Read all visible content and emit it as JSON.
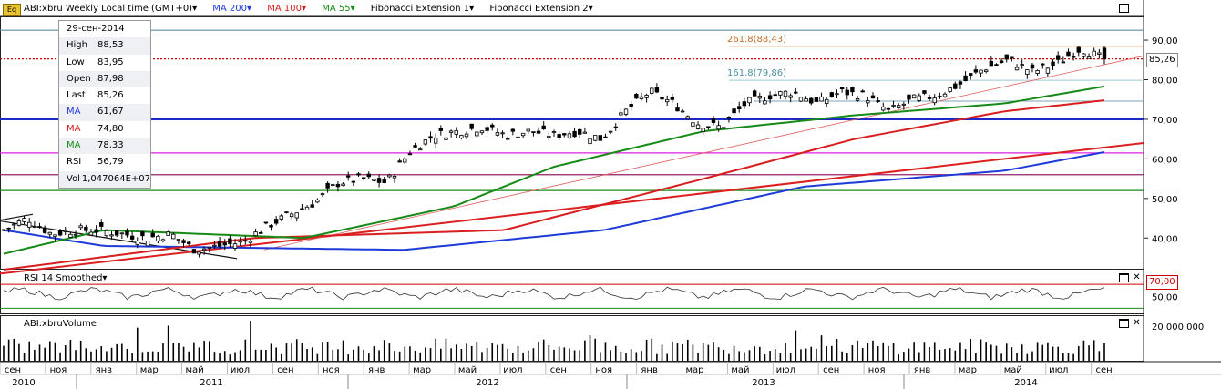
{
  "header": {
    "logo": "Eq",
    "symbol_label": "ABI:xbru Weekly Local time (GMT+0)▾",
    "ma200": "MA 200▾",
    "ma100": "MA 100▾",
    "ma55": "MA 55▾",
    "fib1": "Fibonacci Extension 1▾",
    "fib2": "Fibonacci Extension 2▾"
  },
  "ohlc": [
    {
      "k": "",
      "v": "29-сен-2014",
      "color": "#000"
    },
    {
      "k": "High",
      "v": "88,53",
      "color": "#000"
    },
    {
      "k": "Low",
      "v": "83,95",
      "color": "#000"
    },
    {
      "k": "Open",
      "v": "87,98",
      "color": "#000"
    },
    {
      "k": "Last",
      "v": "85,26",
      "color": "#000"
    },
    {
      "k": "MA",
      "v": "61,67",
      "color": "#1e3ad8"
    },
    {
      "k": "MA",
      "v": "74,80",
      "color": "#d81e1e"
    },
    {
      "k": "MA",
      "v": "78,33",
      "color": "#168a16"
    },
    {
      "k": "RSI",
      "v": "56,79",
      "color": "#000"
    },
    {
      "k": "Vol",
      "v": "1,047064E+07",
      "color": "#000"
    }
  ],
  "rsi_panel": {
    "title": "RSI 14 Smoothed▾",
    "level_label": "70,00"
  },
  "vol_panel": {
    "title": "ABI:xbruVolume"
  },
  "fib_labels": {
    "f2618": "261.8(88,43)",
    "f1618": "161.8(79,86)"
  },
  "last_price": "85,26",
  "chart_data": {
    "type": "candlestick",
    "timeframe": "Weekly",
    "x_range": [
      "2010-09",
      "2014-10"
    ],
    "price_axis": {
      "range": [
        32,
        96
      ],
      "ticks": [
        "90,00",
        "80,00",
        "70,00",
        "60,00",
        "50,00",
        "40,00"
      ]
    },
    "price_path": [
      [
        "2010-09",
        42
      ],
      [
        "2010-10",
        45
      ],
      [
        "2010-12",
        41
      ],
      [
        "2011-02",
        42
      ],
      [
        "2011-03",
        42
      ],
      [
        "2011-04",
        41
      ],
      [
        "2011-05",
        40
      ],
      [
        "2011-06",
        41
      ],
      [
        "2011-07",
        37
      ],
      [
        "2011-08",
        38
      ],
      [
        "2011-09",
        39
      ],
      [
        "2011-10",
        43
      ],
      [
        "2011-11",
        46
      ],
      [
        "2011-12",
        49
      ],
      [
        "2012-01",
        54
      ],
      [
        "2012-02",
        55
      ],
      [
        "2012-03",
        54
      ],
      [
        "2012-04",
        62
      ],
      [
        "2012-05",
        66
      ],
      [
        "2012-06",
        67
      ],
      [
        "2012-07",
        68
      ],
      [
        "2012-08",
        66
      ],
      [
        "2012-09",
        67
      ],
      [
        "2012-10",
        66
      ],
      [
        "2012-11",
        67
      ],
      [
        "2012-12",
        65
      ],
      [
        "2013-01",
        72
      ],
      [
        "2013-02",
        77
      ],
      [
        "2013-03",
        74
      ],
      [
        "2013-04",
        69
      ],
      [
        "2013-05",
        68
      ],
      [
        "2013-06",
        74
      ],
      [
        "2013-07",
        76
      ],
      [
        "2013-08",
        77
      ],
      [
        "2013-09",
        74
      ],
      [
        "2013-10",
        77
      ],
      [
        "2013-11",
        76
      ],
      [
        "2013-12",
        72
      ],
      [
        "2014-01",
        75
      ],
      [
        "2014-02",
        76
      ],
      [
        "2014-03",
        79
      ],
      [
        "2014-04",
        83
      ],
      [
        "2014-05",
        85
      ],
      [
        "2014-06",
        82
      ],
      [
        "2014-07",
        84
      ],
      [
        "2014-08",
        88
      ],
      [
        "2014-09",
        85
      ]
    ],
    "series": [
      {
        "name": "MA 200",
        "color": "#1e3ad8",
        "values": [
          [
            0,
            42
          ],
          [
            10,
            38
          ],
          [
            40,
            37
          ],
          [
            60,
            42
          ],
          [
            80,
            53
          ],
          [
            100,
            57
          ],
          [
            110,
            61.7
          ]
        ]
      },
      {
        "name": "MA 100",
        "color": "#d81e1e",
        "values": [
          [
            0,
            32
          ],
          [
            25,
            40
          ],
          [
            50,
            42
          ],
          [
            70,
            55
          ],
          [
            85,
            65
          ],
          [
            100,
            72
          ],
          [
            110,
            74.8
          ]
        ]
      },
      {
        "name": "MA 55",
        "color": "#168a16",
        "values": [
          [
            0,
            36
          ],
          [
            10,
            42
          ],
          [
            30,
            40
          ],
          [
            45,
            48
          ],
          [
            55,
            58
          ],
          [
            70,
            67
          ],
          [
            85,
            71
          ],
          [
            100,
            74
          ],
          [
            110,
            78.3
          ]
        ]
      }
    ],
    "horizontal_levels": [
      {
        "value": 92.5,
        "color": "#5b8fa8"
      },
      {
        "value": 85.26,
        "color": "#c80000",
        "style": "dotted"
      },
      {
        "value": 70,
        "color": "#1e28c8"
      },
      {
        "value": 61.5,
        "color": "#e020e0"
      },
      {
        "value": 56,
        "color": "#9a1b6a"
      },
      {
        "value": 52,
        "color": "#168a16"
      }
    ],
    "fib_extensions": [
      {
        "label": "261.8(88,43)",
        "value": 88.43
      },
      {
        "label": "161.8(79,86)",
        "value": 79.86
      }
    ],
    "rsi": {
      "ticks": [
        "50,00"
      ],
      "overbought": 70
    },
    "volume": {
      "ticks": [
        "20 000 000"
      ],
      "max": 24000000
    },
    "x_month_labels": [
      "сен",
      "ноя",
      "янв",
      "мар",
      "май",
      "июл",
      "сен",
      "ноя",
      "янв",
      "мар",
      "май",
      "июл",
      "сен",
      "ноя",
      "янв",
      "мар",
      "май",
      "июл",
      "сен",
      "ноя",
      "янв",
      "мар",
      "май",
      "июл",
      "сен"
    ],
    "x_year_labels": [
      "2010",
      "2011",
      "2012",
      "2013",
      "2014"
    ]
  }
}
